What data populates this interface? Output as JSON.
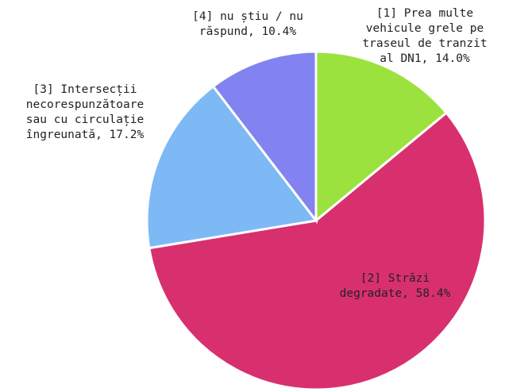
{
  "chart_data": {
    "type": "pie",
    "categories": [
      "[1] Prea multe vehicule grele pe traseul de tranzit al DN1,",
      "[2] Străzi degradate,",
      "[3] Intersecții necorespunzătoare sau cu circulație îngreunată,",
      "[4] nu știu / nu răspund,"
    ],
    "values": [
      14.0,
      58.4,
      17.2,
      10.4
    ],
    "value_labels": [
      "14.0%",
      "58.4%",
      "17.2%",
      "10.4%"
    ],
    "colors": [
      "#9be23e",
      "#d8306f",
      "#7db9f5",
      "#8282f0"
    ]
  }
}
